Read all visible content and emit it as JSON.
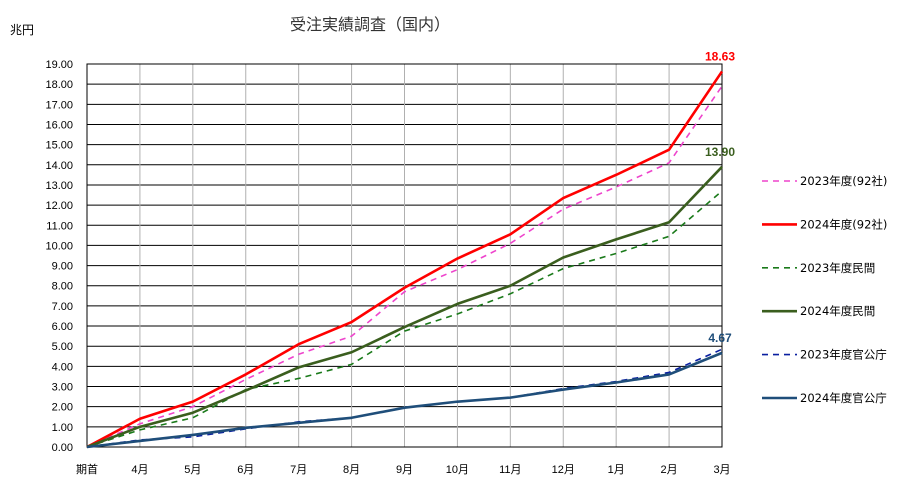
{
  "chart_data": {
    "type": "line",
    "title": "受注実績調査（国内）",
    "ylabel": "兆円",
    "xlabel": "",
    "ylim": [
      0,
      19
    ],
    "yticks": [
      0,
      1,
      2,
      3,
      4,
      5,
      6,
      7,
      8,
      9,
      10,
      11,
      12,
      13,
      14,
      15,
      16,
      17,
      18,
      19
    ],
    "ytick_labels": [
      "0.00",
      "1.00",
      "2.00",
      "3.00",
      "4.00",
      "5.00",
      "6.00",
      "7.00",
      "8.00",
      "9.00",
      "10.00",
      "11.00",
      "12.00",
      "13.00",
      "14.00",
      "15.00",
      "16.00",
      "17.00",
      "18.00",
      "19.00"
    ],
    "categories": [
      "期首",
      "4月",
      "5月",
      "6月",
      "7月",
      "8月",
      "9月",
      "10月",
      "11月",
      "12月",
      "1月",
      "2月",
      "3月"
    ],
    "grid": true,
    "legend_position": "right",
    "series": [
      {
        "name": "2023年度(92社)",
        "color": "#ee44cc",
        "dash": "dashed",
        "values": [
          0,
          1.15,
          2.0,
          3.35,
          4.6,
          5.5,
          7.7,
          8.8,
          10.1,
          11.8,
          12.9,
          14.1,
          17.9
        ]
      },
      {
        "name": "2024年度(92社)",
        "color": "#ff0000",
        "dash": "solid",
        "values": [
          0,
          1.4,
          2.25,
          3.6,
          5.1,
          6.2,
          7.9,
          9.35,
          10.55,
          12.35,
          13.5,
          14.75,
          18.63
        ]
      },
      {
        "name": "2023年度民間",
        "color": "#1a7a1a",
        "dash": "dashed",
        "values": [
          0,
          0.85,
          1.45,
          2.85,
          3.4,
          4.1,
          5.75,
          6.6,
          7.6,
          8.85,
          9.6,
          10.45,
          12.7
        ]
      },
      {
        "name": "2024年度民間",
        "color": "#3a5e1e",
        "dash": "solid",
        "values": [
          0,
          1.0,
          1.7,
          2.8,
          3.95,
          4.7,
          5.95,
          7.1,
          8.0,
          9.4,
          10.3,
          11.15,
          13.9
        ]
      },
      {
        "name": "2023年度官公庁",
        "color": "#0a1fa0",
        "dash": "dashed",
        "values": [
          0,
          0.35,
          0.5,
          0.9,
          1.25,
          1.45,
          1.95,
          2.25,
          2.45,
          2.9,
          3.25,
          3.7,
          4.85
        ]
      },
      {
        "name": "2024年度官公庁",
        "color": "#1f4e7a",
        "dash": "solid",
        "values": [
          0,
          0.3,
          0.6,
          0.95,
          1.2,
          1.45,
          1.95,
          2.25,
          2.45,
          2.85,
          3.2,
          3.6,
          4.67
        ]
      }
    ],
    "data_labels": [
      {
        "series": 1,
        "index": 12,
        "text": "18.63",
        "color": "#ff0000"
      },
      {
        "series": 3,
        "index": 12,
        "text": "13.90",
        "color": "#3a5e1e"
      },
      {
        "series": 5,
        "index": 12,
        "text": "4.67",
        "color": "#1f4e7a"
      }
    ]
  }
}
